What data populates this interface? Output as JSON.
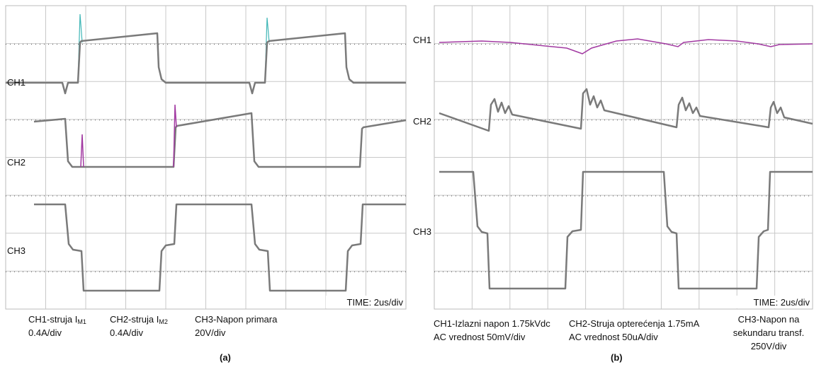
{
  "panel_a": {
    "channels": [
      "CH1",
      "CH2",
      "CH3"
    ],
    "time": "TIME: 2us/div",
    "captions": [
      {
        "title": "CH1-struja I",
        "sub": "M1",
        "scale": "0.4A/div"
      },
      {
        "title": "CH2-struja I",
        "sub": "M2",
        "scale": "0.4A/div"
      },
      {
        "title": "CH3-Napon primara",
        "scale": "20V/div"
      }
    ],
    "label": "(a)"
  },
  "panel_b": {
    "channels": [
      "CH1",
      "CH2",
      "CH3"
    ],
    "time": "TIME: 2us/div",
    "captions": [
      {
        "lines": [
          "CH1-Izlazni napon 1.75kVdc",
          "AC vrednost  50mV/div"
        ]
      },
      {
        "lines": [
          "CH2-Struja opterećenja 1.75mA",
          "AC vrednost 50uA/div"
        ]
      },
      {
        "lines": [
          "CH3-Napon na",
          "sekundaru transf.",
          "250V/div"
        ]
      }
    ],
    "label": "(b)"
  }
}
